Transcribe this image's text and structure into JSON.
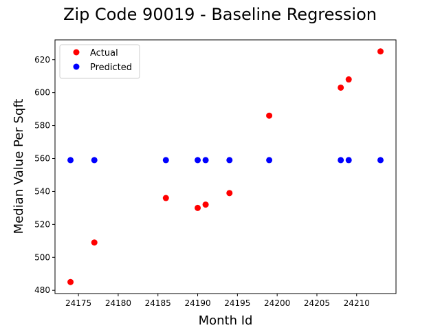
{
  "chart_data": {
    "type": "scatter",
    "title": "Zip Code 90019 - Baseline Regression",
    "xlabel": "Month Id",
    "ylabel": "Median Value Per Sqft",
    "xlim": [
      24172.05,
      24214.95
    ],
    "ylim": [
      478,
      632
    ],
    "xticks": [
      24175,
      24180,
      24185,
      24190,
      24195,
      24200,
      24205,
      24210
    ],
    "yticks": [
      480,
      500,
      520,
      540,
      560,
      580,
      600,
      620
    ],
    "grid": false,
    "legend": "top-left",
    "series": [
      {
        "name": "Actual",
        "color": "#ff0000",
        "x": [
          24174,
          24177,
          24186,
          24190,
          24191,
          24194,
          24199,
          24208,
          24209,
          24213
        ],
        "y": [
          485,
          509,
          536,
          530,
          532,
          539,
          586,
          603,
          608,
          625
        ]
      },
      {
        "name": "Predicted",
        "color": "#0000ff",
        "x": [
          24174,
          24177,
          24186,
          24190,
          24191,
          24194,
          24199,
          24208,
          24209,
          24213
        ],
        "y": [
          559,
          559,
          559,
          559,
          559,
          559,
          559,
          559,
          559,
          559
        ]
      }
    ]
  }
}
